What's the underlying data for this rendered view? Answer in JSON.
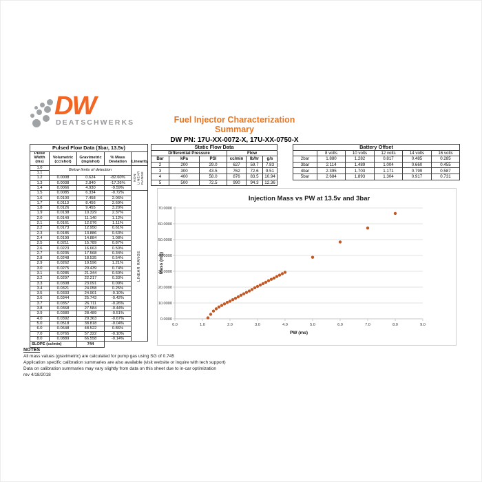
{
  "logo": {
    "dw": "DW",
    "brand": "DEATSCHWERKS"
  },
  "header": {
    "title": "Fuel Injector Characterization Summary",
    "subtitle": "DW PN: 17U-XX-0072-X, 17U-XX-0750-X"
  },
  "colors": {
    "title_orange": "#e87722",
    "logo_orange": "#f26522",
    "logo_gray": "#97999c",
    "marker": "#bf5a28"
  },
  "pulsed_table": {
    "title": "Pulsed Flow Data (3bar, 13.5v)",
    "headers": [
      "Pulse Width (ms)",
      "Volumetric (cc/shot)",
      "Gravimetric (mg/shot)",
      "% Mass Deviation",
      "Linearity"
    ],
    "below_limits_rows": [
      "1.0",
      "1.1"
    ],
    "below_limits_text": "Below limits of detection",
    "non_linear_label": "NON LINEAR RANGE",
    "linear_label": "LINEAR RANGE",
    "rows": [
      [
        "1.2",
        "0.0008",
        "0.624",
        "-82.60%"
      ],
      [
        "1.3",
        "0.0038",
        "2.840",
        "-17.26%"
      ],
      [
        "1.4",
        "0.0066",
        "4.930",
        "-9.59%"
      ],
      [
        "1.5",
        "0.0085",
        "6.334",
        "-0.72%"
      ],
      [
        "1.6",
        "0.0100",
        "7.458",
        "2.06%"
      ],
      [
        "1.7",
        "0.0113",
        "8.456",
        "2.69%"
      ],
      [
        "1.8",
        "0.0126",
        "9.455",
        "3.20%"
      ],
      [
        "1.9",
        "0.0138",
        "10.329",
        "2.37%"
      ],
      [
        "2.0",
        "0.0149",
        "11.140",
        "1.12%"
      ],
      [
        "2.1",
        "0.0161",
        "12.076",
        "1.11%"
      ],
      [
        "2.2",
        "0.0173",
        "12.950",
        "0.61%"
      ],
      [
        "2.3",
        "0.0185",
        "13.886",
        "0.63%"
      ],
      [
        "2.4",
        "0.0199",
        "14.884",
        "1.08%"
      ],
      [
        "2.5",
        "0.0211",
        "15.789",
        "0.87%"
      ],
      [
        "2.6",
        "0.0223",
        "16.663",
        "0.50%"
      ],
      [
        "2.7",
        "0.0235",
        "17.568",
        "0.34%"
      ],
      [
        "2.8",
        "0.0248",
        "18.535",
        "0.54%"
      ],
      [
        "2.9",
        "0.0262",
        "19.596",
        "1.21%"
      ],
      [
        "3.0",
        "0.0275",
        "20.439",
        "0.74%"
      ],
      [
        "3.1",
        "0.0285",
        "21.344",
        "0.60%"
      ],
      [
        "3.2",
        "0.0297",
        "22.217",
        "0.33%"
      ],
      [
        "3.3",
        "0.0308",
        "23.091",
        "0.09%"
      ],
      [
        "3.4",
        "0.0321",
        "24.058",
        "0.25%"
      ],
      [
        "3.5",
        "0.0333",
        "24.901",
        "-0.10%"
      ],
      [
        "3.6",
        "0.0344",
        "25.743",
        "-0.42%"
      ],
      [
        "3.7",
        "0.0357",
        "26.711",
        "-0.26%"
      ],
      [
        "3.8",
        "0.0368",
        "27.584",
        "-0.44%"
      ],
      [
        "3.9",
        "0.0380",
        "28.489",
        "-0.51%"
      ],
      [
        "4.0",
        "0.0392",
        "29.363",
        "-0.67%"
      ],
      [
        "5.0",
        "0.0518",
        "38.818",
        "-0.04%"
      ],
      [
        "6.0",
        "0.0648",
        "48.522",
        "0.86%"
      ],
      [
        "7.0",
        "0.0765",
        "57.322",
        "-0.10%"
      ],
      [
        "8.0",
        "0.0889",
        "66.558",
        "-0.14%"
      ]
    ],
    "slope_label": "SLOPE (cc/min)",
    "slope_value": "744"
  },
  "static_table": {
    "title": "Static Flow Data",
    "group_headers": [
      "Differential Pressure",
      "Flow"
    ],
    "columns": [
      "Bar",
      "kPa",
      "PSI",
      "cc/min",
      "lb/hr",
      "g/s"
    ],
    "rows": [
      [
        "2",
        "200",
        "29.0",
        "627",
        "59.7",
        "7.83"
      ],
      [
        "3",
        "300",
        "43.5",
        "762",
        "72.6",
        "9.51"
      ],
      [
        "4",
        "400",
        "58.0",
        "876",
        "83.5",
        "10.94"
      ],
      [
        "5",
        "500",
        "72.5",
        "990",
        "94.3",
        "12.36"
      ]
    ]
  },
  "battery_table": {
    "title": "Battery Offset",
    "columns": [
      "",
      "8 volts",
      "10 volts",
      "12 volts",
      "14 volts",
      "16 volts"
    ],
    "rows": [
      [
        "2bar",
        "1.880",
        "1.282",
        "0.817",
        "0.485",
        "0.285"
      ],
      [
        "3bar",
        "2.114",
        "1.489",
        "1.004",
        "0.660",
        "0.455"
      ],
      [
        "4bar",
        "2.395",
        "1.703",
        "1.171",
        "0.799",
        "0.587"
      ],
      [
        "5bar",
        "2.684",
        "1.893",
        "1.304",
        "0.917",
        "0.731"
      ]
    ]
  },
  "chart_data": {
    "type": "scatter",
    "title": "Injection Mass vs PW at 13.5v and 3bar",
    "xlabel": "PW (ms)",
    "ylabel": "Mass (mg)",
    "xlim": [
      0,
      9
    ],
    "ylim": [
      0,
      70
    ],
    "x_tick_labels": [
      "0.0",
      "1.0",
      "2.0",
      "3.0",
      "4.0",
      "5.0",
      "6.0",
      "7.0",
      "8.0",
      "9.0"
    ],
    "y_tick_labels": [
      "0.0000",
      "10.0000",
      "20.0000",
      "30.0000",
      "40.0000",
      "50.0000",
      "60.0000",
      "70.0000"
    ],
    "grid": "horizontal",
    "legend": "none",
    "marker_color": "#bf5a28",
    "x": [
      1.2,
      1.3,
      1.4,
      1.5,
      1.6,
      1.7,
      1.8,
      1.9,
      2.0,
      2.1,
      2.2,
      2.3,
      2.4,
      2.5,
      2.6,
      2.7,
      2.8,
      2.9,
      3.0,
      3.1,
      3.2,
      3.3,
      3.4,
      3.5,
      3.6,
      3.7,
      3.8,
      3.9,
      4.0,
      5.0,
      6.0,
      7.0,
      8.0
    ],
    "y": [
      0.624,
      2.84,
      4.93,
      6.334,
      7.458,
      8.456,
      9.455,
      10.329,
      11.14,
      12.076,
      12.95,
      13.886,
      14.884,
      15.789,
      16.663,
      17.568,
      18.535,
      19.596,
      20.439,
      21.344,
      22.217,
      23.091,
      24.058,
      24.901,
      25.743,
      26.711,
      27.584,
      28.489,
      29.363,
      38.818,
      48.522,
      57.322,
      66.558
    ]
  },
  "notes": {
    "title": "NOTES",
    "lines": [
      "All mass values (gravimetric) are calculated for pump gas using SG of 0.745",
      "Application specific calibration summaries are also available (visit website or inquire with tech support)",
      "Data on calibration summaries may vary slightly from data on this sheet due to in-car optimization"
    ],
    "rev": "rev 4/18/2018"
  }
}
